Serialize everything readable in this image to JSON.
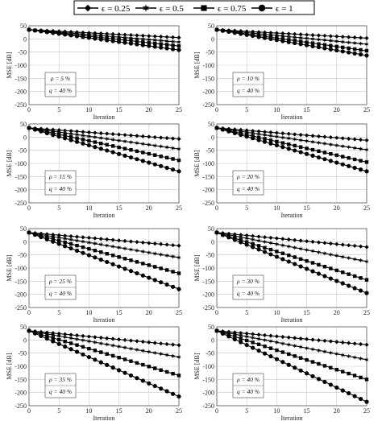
{
  "legend": {
    "entries": [
      {
        "label": "ϵ = 0.25",
        "marker": "diamond"
      },
      {
        "label": "ϵ = 0.5",
        "marker": "star"
      },
      {
        "label": "ϵ = 0.75",
        "marker": "square"
      },
      {
        "label": "ϵ = 1",
        "marker": "circle"
      }
    ]
  },
  "colors": {
    "line": "#000000",
    "grid": "#c8c8c8",
    "axis": "#555555",
    "background": "#ffffff"
  },
  "chart_data": [
    {
      "type": "line",
      "xlabel": "Iteration",
      "ylabel": "MSE [dB]",
      "xlim": [
        0,
        25
      ],
      "ylim": [
        -250,
        50
      ],
      "xticks": [
        0,
        5,
        10,
        15,
        20,
        25
      ],
      "yticks": [
        50,
        0,
        -50,
        -100,
        -150,
        -200,
        -250
      ],
      "grid": true,
      "annotation": [
        "ρ = 5 %",
        "q = 40 %"
      ],
      "x": [
        0,
        1,
        2,
        3,
        4,
        5,
        6,
        7,
        8,
        9,
        10,
        11,
        12,
        13,
        14,
        15,
        16,
        17,
        18,
        19,
        20,
        21,
        22,
        23,
        24,
        25
      ],
      "series": [
        {
          "values_linear": [
            35,
            5
          ]
        },
        {
          "values_linear": [
            35,
            -12
          ]
        },
        {
          "values_linear": [
            35,
            -27
          ]
        },
        {
          "values_linear": [
            35,
            -42
          ]
        }
      ]
    },
    {
      "type": "line",
      "xlabel": "Iteration",
      "ylabel": "MSE [dB]",
      "xlim": [
        0,
        25
      ],
      "ylim": [
        -250,
        50
      ],
      "xticks": [
        0,
        5,
        10,
        15,
        20,
        25
      ],
      "yticks": [
        50,
        0,
        -50,
        -100,
        -150,
        -200,
        -250
      ],
      "grid": true,
      "annotation": [
        "ρ = 10 %",
        "q = 40 %"
      ],
      "x": [
        0,
        1,
        2,
        3,
        4,
        5,
        6,
        7,
        8,
        9,
        10,
        11,
        12,
        13,
        14,
        15,
        16,
        17,
        18,
        19,
        20,
        21,
        22,
        23,
        24,
        25
      ],
      "series": [
        {
          "values_linear": [
            35,
            3
          ]
        },
        {
          "values_linear": [
            35,
            -20
          ]
        },
        {
          "values_linear": [
            35,
            -45
          ]
        },
        {
          "values_linear": [
            35,
            -63
          ]
        }
      ]
    },
    {
      "type": "line",
      "xlabel": "Iteration",
      "ylabel": "MSE [dB]",
      "xlim": [
        0,
        25
      ],
      "ylim": [
        -250,
        50
      ],
      "xticks": [
        0,
        5,
        10,
        15,
        20,
        25
      ],
      "yticks": [
        50,
        0,
        -50,
        -100,
        -150,
        -200,
        -250
      ],
      "grid": true,
      "annotation": [
        "ρ = 15 %",
        "q = 40 %"
      ],
      "x": [
        0,
        1,
        2,
        3,
        4,
        5,
        6,
        7,
        8,
        9,
        10,
        11,
        12,
        13,
        14,
        15,
        16,
        17,
        18,
        19,
        20,
        21,
        22,
        23,
        24,
        25
      ],
      "series": [
        {
          "values_linear": [
            35,
            -7
          ]
        },
        {
          "values_linear": [
            35,
            -45
          ]
        },
        {
          "values_linear": [
            35,
            -88
          ]
        },
        {
          "values_linear": [
            35,
            -130
          ]
        }
      ]
    },
    {
      "type": "line",
      "xlabel": "Iteration",
      "ylabel": "MSE [dB]",
      "xlim": [
        0,
        25
      ],
      "ylim": [
        -250,
        50
      ],
      "xticks": [
        0,
        5,
        10,
        15,
        20,
        25
      ],
      "yticks": [
        50,
        0,
        -50,
        -100,
        -150,
        -200,
        -250
      ],
      "grid": true,
      "annotation": [
        "ρ = 20 %",
        "q = 40 %"
      ],
      "x": [
        0,
        1,
        2,
        3,
        4,
        5,
        6,
        7,
        8,
        9,
        10,
        11,
        12,
        13,
        14,
        15,
        16,
        17,
        18,
        19,
        20,
        21,
        22,
        23,
        24,
        25
      ],
      "series": [
        {
          "values_linear": [
            35,
            -12
          ]
        },
        {
          "values_linear": [
            35,
            -48
          ]
        },
        {
          "values_linear": [
            35,
            -95
          ]
        },
        {
          "values_linear": [
            35,
            -130
          ]
        }
      ]
    },
    {
      "type": "line",
      "xlabel": "Iteration",
      "ylabel": "MSE [dB]",
      "xlim": [
        0,
        25
      ],
      "ylim": [
        -250,
        50
      ],
      "xticks": [
        0,
        5,
        10,
        15,
        20,
        25
      ],
      "yticks": [
        50,
        0,
        -50,
        -100,
        -150,
        -200,
        -250
      ],
      "grid": true,
      "annotation": [
        "ρ = 25 %",
        "q = 40 %"
      ],
      "x": [
        0,
        1,
        2,
        3,
        4,
        5,
        6,
        7,
        8,
        9,
        10,
        11,
        12,
        13,
        14,
        15,
        16,
        17,
        18,
        19,
        20,
        21,
        22,
        23,
        24,
        25
      ],
      "series": [
        {
          "values_linear": [
            35,
            -15
          ]
        },
        {
          "values_linear": [
            35,
            -60
          ]
        },
        {
          "values_linear": [
            35,
            -120
          ]
        },
        {
          "values_linear": [
            35,
            -180
          ]
        }
      ]
    },
    {
      "type": "line",
      "xlabel": "Iteration",
      "ylabel": "MSE [dB]",
      "xlim": [
        0,
        25
      ],
      "ylim": [
        -250,
        50
      ],
      "xticks": [
        0,
        5,
        10,
        15,
        20,
        25
      ],
      "yticks": [
        50,
        0,
        -50,
        -100,
        -150,
        -200,
        -250
      ],
      "grid": true,
      "annotation": [
        "ρ = 30 %",
        "q = 40 %"
      ],
      "x": [
        0,
        1,
        2,
        3,
        4,
        5,
        6,
        7,
        8,
        9,
        10,
        11,
        12,
        13,
        14,
        15,
        16,
        17,
        18,
        19,
        20,
        21,
        22,
        23,
        24,
        25
      ],
      "series": [
        {
          "values_linear": [
            35,
            -20
          ]
        },
        {
          "values_linear": [
            35,
            -75
          ]
        },
        {
          "values_linear": [
            35,
            -145
          ]
        },
        {
          "values_linear": [
            35,
            -195
          ]
        }
      ]
    },
    {
      "type": "line",
      "xlabel": "Iteration",
      "ylabel": "MSE [dB]",
      "xlim": [
        0,
        25
      ],
      "ylim": [
        -250,
        50
      ],
      "xticks": [
        0,
        5,
        10,
        15,
        20,
        25
      ],
      "yticks": [
        50,
        0,
        -50,
        -100,
        -150,
        -200,
        -250
      ],
      "grid": true,
      "annotation": [
        "ρ = 35 %",
        "q = 40 %"
      ],
      "x": [
        0,
        1,
        2,
        3,
        4,
        5,
        6,
        7,
        8,
        9,
        10,
        11,
        12,
        13,
        14,
        15,
        16,
        17,
        18,
        19,
        20,
        21,
        22,
        23,
        24,
        25
      ],
      "series": [
        {
          "values_linear": [
            35,
            -20
          ]
        },
        {
          "values_linear": [
            35,
            -65
          ]
        },
        {
          "values_linear": [
            35,
            -135
          ]
        },
        {
          "values_linear": [
            35,
            -215
          ]
        }
      ]
    },
    {
      "type": "line",
      "xlabel": "Iteration",
      "ylabel": "MSE [dB]",
      "xlim": [
        0,
        25
      ],
      "ylim": [
        -250,
        50
      ],
      "xticks": [
        0,
        5,
        10,
        15,
        20,
        25
      ],
      "yticks": [
        50,
        0,
        -50,
        -100,
        -150,
        -200,
        -250
      ],
      "grid": true,
      "annotation": [
        "ρ = 40 %",
        "q = 40 %"
      ],
      "x": [
        0,
        1,
        2,
        3,
        4,
        5,
        6,
        7,
        8,
        9,
        10,
        11,
        12,
        13,
        14,
        15,
        16,
        17,
        18,
        19,
        20,
        21,
        22,
        23,
        24,
        25
      ],
      "series": [
        {
          "values_linear": [
            35,
            -18
          ]
        },
        {
          "values_linear": [
            35,
            -75
          ]
        },
        {
          "values_linear": [
            35,
            -150
          ]
        },
        {
          "values_linear": [
            35,
            -235
          ]
        }
      ]
    }
  ]
}
